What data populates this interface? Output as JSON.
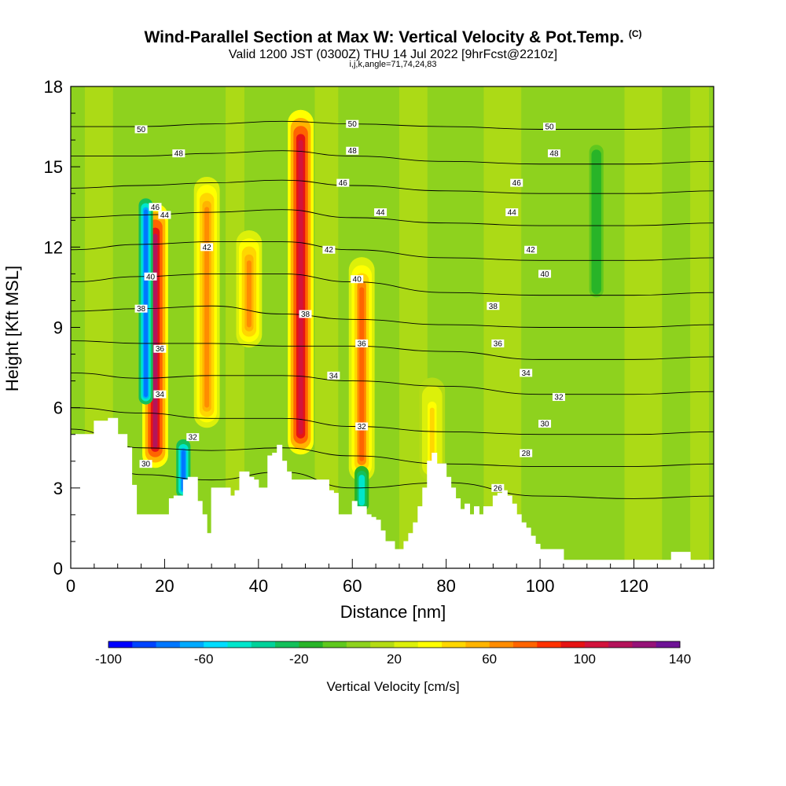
{
  "chart_data": {
    "type": "heatmap",
    "title": "Wind-Parallel Section at Max W: Vertical Velocity & Pot.Temp.",
    "title_marker": "(C)",
    "subtitle": "Valid 1200 JST (0300Z) THU 14 Jul 2022 [9hrFcst@2210z]",
    "subtitle2": "i,j,k,angle=71,74,24,83",
    "xlabel": "Distance [nm]",
    "ylabel": "Height [Kft MSL]",
    "xlim": [
      0,
      137
    ],
    "ylim": [
      0,
      18
    ],
    "xticks": [
      0,
      20,
      40,
      60,
      80,
      100,
      120
    ],
    "yticks": [
      0,
      3,
      6,
      9,
      12,
      15,
      18
    ],
    "colorbar": {
      "label": "Vertical Velocity [cm/s]",
      "ticks": [
        -100,
        -60,
        -20,
        20,
        60,
        100,
        140
      ],
      "colors": [
        "#0000ff",
        "#0044ff",
        "#0077ff",
        "#00aaff",
        "#00ddff",
        "#00e6cc",
        "#00d29a",
        "#14c05a",
        "#28b428",
        "#5fc81e",
        "#8ed21e",
        "#b4dc14",
        "#dcf00a",
        "#ffff00",
        "#ffd700",
        "#ffb400",
        "#ff8c00",
        "#ff6400",
        "#ff3200",
        "#e61414",
        "#d2143c",
        "#b4145a",
        "#961478",
        "#6e1496"
      ]
    },
    "updraft_cores": [
      {
        "x": 18,
        "ztop": 13.5,
        "zbot": 3.5,
        "w": 110
      },
      {
        "x": 29,
        "ztop": 14.5,
        "zbot": 5,
        "w": 60
      },
      {
        "x": 38,
        "ztop": 12.5,
        "zbot": 8,
        "w": 65
      },
      {
        "x": 49,
        "ztop": 17,
        "zbot": 4,
        "w": 105
      },
      {
        "x": 62,
        "ztop": 11.5,
        "zbot": 3,
        "w": 70
      },
      {
        "x": 77,
        "ztop": 7,
        "zbot": 3,
        "w": 40
      }
    ],
    "downdraft_cores": [
      {
        "x": 16,
        "ztop": 14,
        "zbot": 6,
        "w": -80
      },
      {
        "x": 24,
        "ztop": 5,
        "zbot": 2.5,
        "w": -75
      },
      {
        "x": 62,
        "ztop": 4,
        "zbot": 2,
        "w": -50
      },
      {
        "x": 112,
        "ztop": 16,
        "zbot": 10,
        "w": -20
      }
    ],
    "terrain": [
      [
        0,
        5
      ],
      [
        1,
        5
      ],
      [
        5,
        5.5
      ],
      [
        8,
        5.6
      ],
      [
        9,
        5.6
      ],
      [
        10,
        5
      ],
      [
        12,
        4.5
      ],
      [
        13,
        3.5
      ],
      [
        13,
        3.1
      ],
      [
        14,
        2
      ],
      [
        15,
        2
      ],
      [
        16,
        2
      ],
      [
        20,
        2
      ],
      [
        21,
        2.6
      ],
      [
        22,
        2.7
      ],
      [
        24,
        3.3
      ],
      [
        25,
        3.4
      ],
      [
        27,
        2.5
      ],
      [
        28,
        2
      ],
      [
        29,
        1.3
      ],
      [
        30,
        3
      ],
      [
        33,
        3
      ],
      [
        34,
        2.7
      ],
      [
        35,
        2.9
      ],
      [
        36,
        3.6
      ],
      [
        38,
        3.4
      ],
      [
        39,
        3.3
      ],
      [
        40,
        3
      ],
      [
        41,
        3
      ],
      [
        42,
        4.2
      ],
      [
        43,
        4.3
      ],
      [
        44,
        4.6
      ],
      [
        45,
        4
      ],
      [
        46,
        3.6
      ],
      [
        47,
        3.3
      ],
      [
        54,
        3.3
      ],
      [
        55,
        2.9
      ],
      [
        56,
        2.8
      ],
      [
        57,
        2.3
      ],
      [
        57,
        2
      ],
      [
        58,
        2
      ],
      [
        59,
        2
      ],
      [
        60,
        2.5
      ],
      [
        61,
        2.3
      ],
      [
        62,
        2.3
      ],
      [
        63,
        2
      ],
      [
        64,
        1.9
      ],
      [
        65,
        1.8
      ],
      [
        66,
        1.4
      ],
      [
        67,
        1
      ],
      [
        68,
        1
      ],
      [
        69,
        0.7
      ],
      [
        70,
        0.7
      ],
      [
        71,
        1
      ],
      [
        72,
        1.3
      ],
      [
        73,
        1.7
      ],
      [
        74,
        2.3
      ],
      [
        75,
        3
      ],
      [
        76,
        4
      ],
      [
        77,
        4.3
      ],
      [
        78,
        3.9
      ],
      [
        80,
        3.4
      ],
      [
        81,
        3
      ],
      [
        82,
        2.6
      ],
      [
        83,
        2.2
      ],
      [
        84,
        2.4
      ],
      [
        85,
        2
      ],
      [
        86,
        2.3
      ],
      [
        87,
        2
      ],
      [
        88,
        2.3
      ],
      [
        89,
        2.3
      ],
      [
        90,
        2.7
      ],
      [
        91,
        2.8
      ],
      [
        92,
        2.9
      ],
      [
        93,
        2.7
      ],
      [
        94,
        2.4
      ],
      [
        95,
        2
      ],
      [
        96,
        1.7
      ],
      [
        97,
        1.5
      ],
      [
        98,
        1.2
      ],
      [
        99,
        0.9
      ],
      [
        100,
        0.7
      ],
      [
        104,
        0.7
      ],
      [
        105,
        0.3
      ],
      [
        127,
        0.3
      ],
      [
        128,
        0.6
      ],
      [
        131,
        0.6
      ],
      [
        132,
        0.3
      ],
      [
        137,
        0.3
      ]
    ],
    "isentropes": [
      {
        "theta": 50,
        "pts": [
          [
            0,
            16.5
          ],
          [
            15,
            16.5
          ],
          [
            30,
            16.6
          ],
          [
            45,
            16.7
          ],
          [
            60,
            16.6
          ],
          [
            80,
            16.5
          ],
          [
            100,
            16.4
          ],
          [
            120,
            16.4
          ],
          [
            137,
            16.5
          ]
        ]
      },
      {
        "theta": 48,
        "pts": [
          [
            0,
            15.4
          ],
          [
            15,
            15.4
          ],
          [
            30,
            15.5
          ],
          [
            45,
            15.6
          ],
          [
            60,
            15.4
          ],
          [
            80,
            15.2
          ],
          [
            100,
            15.1
          ],
          [
            120,
            15.1
          ],
          [
            137,
            15.2
          ]
        ]
      },
      {
        "theta": 46,
        "pts": [
          [
            0,
            14.2
          ],
          [
            15,
            14.3
          ],
          [
            30,
            14.4
          ],
          [
            45,
            14.5
          ],
          [
            60,
            14.3
          ],
          [
            80,
            14.1
          ],
          [
            100,
            14
          ],
          [
            120,
            14
          ],
          [
            137,
            14.1
          ]
        ]
      },
      {
        "theta": 44,
        "pts": [
          [
            0,
            13.1
          ],
          [
            15,
            13.2
          ],
          [
            30,
            13.3
          ],
          [
            45,
            13.4
          ],
          [
            60,
            13.1
          ],
          [
            80,
            12.9
          ],
          [
            100,
            12.8
          ],
          [
            120,
            12.8
          ],
          [
            137,
            12.9
          ]
        ]
      },
      {
        "theta": 42,
        "pts": [
          [
            0,
            11.9
          ],
          [
            15,
            12.1
          ],
          [
            30,
            12.2
          ],
          [
            45,
            12.2
          ],
          [
            60,
            11.9
          ],
          [
            80,
            11.6
          ],
          [
            100,
            11.5
          ],
          [
            120,
            11.5
          ],
          [
            137,
            11.6
          ]
        ]
      },
      {
        "theta": 40,
        "pts": [
          [
            0,
            10.7
          ],
          [
            15,
            10.9
          ],
          [
            30,
            11
          ],
          [
            45,
            11
          ],
          [
            60,
            10.7
          ],
          [
            80,
            10.3
          ],
          [
            100,
            10.2
          ],
          [
            120,
            10.2
          ],
          [
            137,
            10.3
          ]
        ]
      },
      {
        "theta": 38,
        "pts": [
          [
            0,
            9.6
          ],
          [
            15,
            9.7
          ],
          [
            30,
            9.8
          ],
          [
            45,
            9.5
          ],
          [
            60,
            9.3
          ],
          [
            80,
            9.1
          ],
          [
            100,
            9
          ],
          [
            120,
            9
          ],
          [
            137,
            9.1
          ]
        ]
      },
      {
        "theta": 36,
        "pts": [
          [
            0,
            8.5
          ],
          [
            15,
            8.4
          ],
          [
            30,
            8.4
          ],
          [
            45,
            8.3
          ],
          [
            60,
            8.3
          ],
          [
            80,
            8.1
          ],
          [
            100,
            7.8
          ],
          [
            120,
            7.8
          ],
          [
            137,
            7.9
          ]
        ]
      },
      {
        "theta": 34,
        "pts": [
          [
            0,
            7.3
          ],
          [
            15,
            7.1
          ],
          [
            30,
            7.2
          ],
          [
            45,
            7.2
          ],
          [
            60,
            7
          ],
          [
            80,
            6.8
          ],
          [
            100,
            6.5
          ],
          [
            120,
            6.5
          ],
          [
            137,
            6.6
          ]
        ]
      },
      {
        "theta": 32,
        "pts": [
          [
            0,
            6
          ],
          [
            15,
            5.8
          ],
          [
            30,
            5.6
          ],
          [
            45,
            5.6
          ],
          [
            60,
            5.3
          ],
          [
            80,
            5.1
          ],
          [
            100,
            5
          ],
          [
            120,
            5
          ],
          [
            137,
            5.1
          ]
        ]
      },
      {
        "theta": 30,
        "pts": [
          [
            0,
            5.2
          ],
          [
            15,
            4.5
          ],
          [
            30,
            4.4
          ],
          [
            45,
            4.5
          ],
          [
            60,
            4.2
          ],
          [
            80,
            3.9
          ],
          [
            100,
            3.8
          ],
          [
            120,
            3.8
          ],
          [
            137,
            3.9
          ]
        ]
      },
      {
        "theta": 28,
        "pts": [
          [
            0,
            4.8
          ],
          [
            15,
            3.5
          ],
          [
            30,
            3.3
          ],
          [
            45,
            3.6
          ],
          [
            60,
            3
          ],
          [
            80,
            3.2
          ],
          [
            100,
            2.7
          ],
          [
            120,
            2.6
          ],
          [
            137,
            2.7
          ]
        ]
      }
    ],
    "contour_labels": [
      {
        "text": "50",
        "x": 15,
        "z": 16.4
      },
      {
        "text": "50",
        "x": 60,
        "z": 16.6
      },
      {
        "text": "50",
        "x": 102,
        "z": 16.5
      },
      {
        "text": "48",
        "x": 23,
        "z": 15.5
      },
      {
        "text": "48",
        "x": 60,
        "z": 15.6
      },
      {
        "text": "48",
        "x": 103,
        "z": 15.5
      },
      {
        "text": "46",
        "x": 18,
        "z": 13.5
      },
      {
        "text": "46",
        "x": 58,
        "z": 14.4
      },
      {
        "text": "46",
        "x": 95,
        "z": 14.4
      },
      {
        "text": "44",
        "x": 20,
        "z": 13.2
      },
      {
        "text": "44",
        "x": 66,
        "z": 13.3
      },
      {
        "text": "44",
        "x": 94,
        "z": 13.3
      },
      {
        "text": "42",
        "x": 29,
        "z": 12
      },
      {
        "text": "42",
        "x": 55,
        "z": 11.9
      },
      {
        "text": "42",
        "x": 98,
        "z": 11.9
      },
      {
        "text": "40",
        "x": 17,
        "z": 10.9
      },
      {
        "text": "40",
        "x": 61,
        "z": 10.8
      },
      {
        "text": "40",
        "x": 101,
        "z": 11
      },
      {
        "text": "38",
        "x": 15,
        "z": 9.7
      },
      {
        "text": "38",
        "x": 50,
        "z": 9.5
      },
      {
        "text": "38",
        "x": 90,
        "z": 9.8
      },
      {
        "text": "36",
        "x": 19,
        "z": 8.2
      },
      {
        "text": "36",
        "x": 62,
        "z": 8.4
      },
      {
        "text": "36",
        "x": 91,
        "z": 8.4
      },
      {
        "text": "34",
        "x": 19,
        "z": 6.5
      },
      {
        "text": "34",
        "x": 56,
        "z": 7.2
      },
      {
        "text": "34",
        "x": 97,
        "z": 7.3
      },
      {
        "text": "32",
        "x": 26,
        "z": 4.9
      },
      {
        "text": "32",
        "x": 62,
        "z": 5.3
      },
      {
        "text": "32",
        "x": 104,
        "z": 6.4
      },
      {
        "text": "30",
        "x": 16,
        "z": 3.9
      },
      {
        "text": "30",
        "x": 101,
        "z": 5.4
      },
      {
        "text": "28",
        "x": 97,
        "z": 4.3
      },
      {
        "text": "26",
        "x": 91,
        "z": 3
      }
    ]
  }
}
